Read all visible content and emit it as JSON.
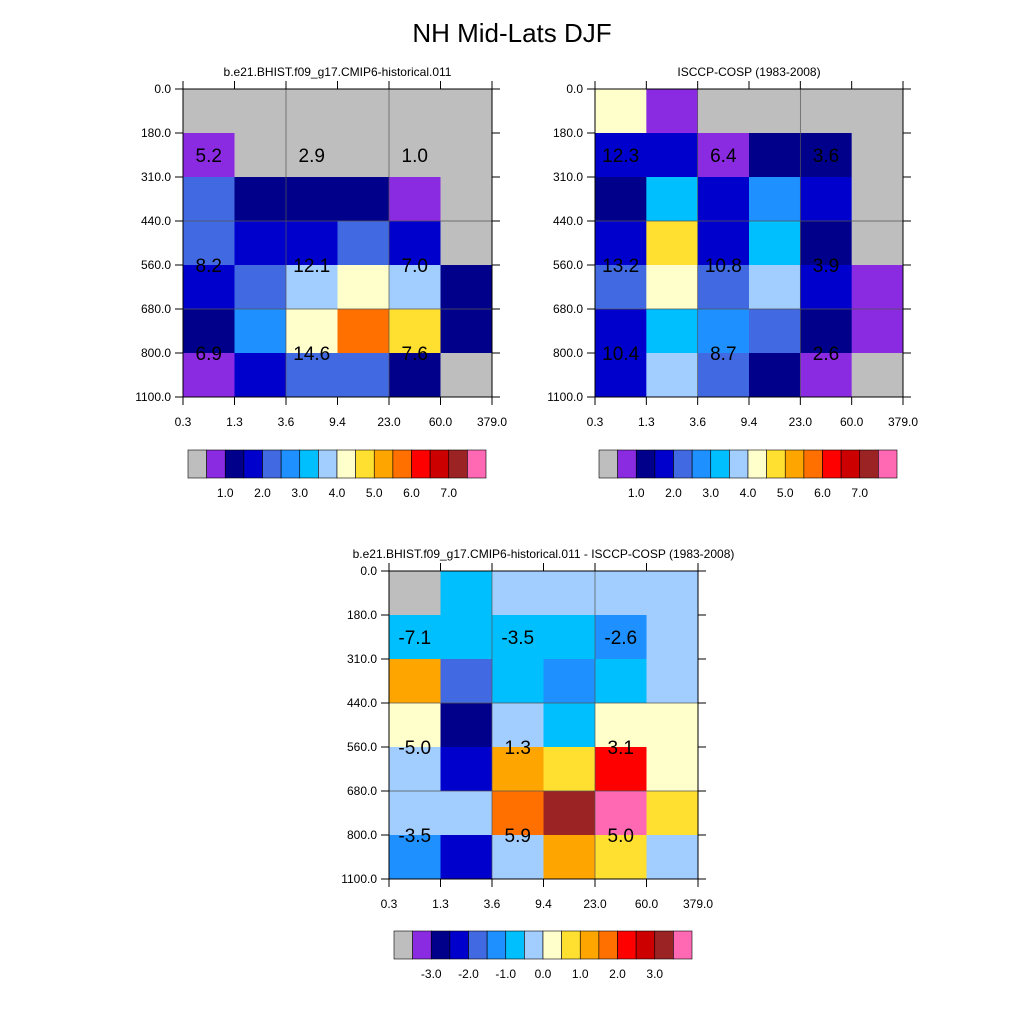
{
  "title": "NH Mid-Lats DJF",
  "colors": {
    "axis": "#000000",
    "missing": "#bebebe",
    "grid": "#555555"
  },
  "chart_data": [
    {
      "type": "heatmap",
      "title": "b.e21.BHIST.f09_g17.CMIP6-historical.011",
      "x_tick_labels": [
        "0.3",
        "1.3",
        "3.6",
        "9.4",
        "23.0",
        "60.0",
        "379.0"
      ],
      "y_tick_labels": [
        "0.0",
        "180.0",
        "310.0",
        "440.0",
        "560.0",
        "680.0",
        "800.0",
        "1100.0"
      ],
      "grid": true,
      "cells": [
        [
          "missing",
          "missing",
          "missing",
          "missing",
          "missing",
          "missing"
        ],
        [
          "#8a2be2",
          "missing",
          "missing",
          "missing",
          "missing",
          "missing"
        ],
        [
          "#4169e1",
          "#00008b",
          "#00008b",
          "#00008b",
          "#8a2be2",
          "missing"
        ],
        [
          "#4169e1",
          "#0000cd",
          "#0000cd",
          "#4169e1",
          "#0000cd",
          "missing"
        ],
        [
          "#0000cd",
          "#4169e1",
          "#a2cdff",
          "#ffffcc",
          "#a2cdff",
          "#00008b"
        ],
        [
          "#00008b",
          "#1e90ff",
          "#ffffcc",
          "#ff7000",
          "#ffdf30",
          "#00008b"
        ],
        [
          "#8a2be2",
          "#0000cd",
          "#4169e1",
          "#4169e1",
          "#00008b",
          "missing"
        ]
      ],
      "annotations": [
        {
          "col": 0.5,
          "row": 1.5,
          "text": "5.2"
        },
        {
          "col": 2.5,
          "row": 1.5,
          "text": "2.9"
        },
        {
          "col": 4.5,
          "row": 1.5,
          "text": "1.0"
        },
        {
          "col": 0.5,
          "row": 4.0,
          "text": "8.2"
        },
        {
          "col": 2.5,
          "row": 4.0,
          "text": "12.1"
        },
        {
          "col": 4.5,
          "row": 4.0,
          "text": "7.0"
        },
        {
          "col": 0.5,
          "row": 6.0,
          "text": "6.9"
        },
        {
          "col": 2.5,
          "row": 6.0,
          "text": "14.6"
        },
        {
          "col": 4.5,
          "row": 6.0,
          "text": "7.6"
        }
      ],
      "colorbar": {
        "colors": [
          "#bebebe",
          "#8a2be2",
          "#00008b",
          "#0000cd",
          "#4169e1",
          "#1e90ff",
          "#00bfff",
          "#a2cdff",
          "#ffffcc",
          "#ffdf30",
          "#ffa500",
          "#ff7000",
          "#ff0000",
          "#cd0000",
          "#9c2323",
          "#ff69b4"
        ],
        "labels": [
          {
            "after_box": 2,
            "text": "1.0"
          },
          {
            "after_box": 4,
            "text": "2.0"
          },
          {
            "after_box": 6,
            "text": "3.0"
          },
          {
            "after_box": 8,
            "text": "4.0"
          },
          {
            "after_box": 10,
            "text": "5.0"
          },
          {
            "after_box": 12,
            "text": "6.0"
          },
          {
            "after_box": 14,
            "text": "7.0"
          }
        ]
      }
    },
    {
      "type": "heatmap",
      "title": "ISCCP-COSP (1983-2008)",
      "x_tick_labels": [
        "0.3",
        "1.3",
        "3.6",
        "9.4",
        "23.0",
        "60.0",
        "379.0"
      ],
      "y_tick_labels": [
        "0.0",
        "180.0",
        "310.0",
        "440.0",
        "560.0",
        "680.0",
        "800.0",
        "1100.0"
      ],
      "grid": true,
      "cells": [
        [
          "#ffffcc",
          "#8a2be2",
          "missing",
          "missing",
          "missing",
          "missing"
        ],
        [
          "#0000cd",
          "#0000cd",
          "#8a2be2",
          "#00008b",
          "#00008b",
          "missing"
        ],
        [
          "#00008b",
          "#00bfff",
          "#0000cd",
          "#1e90ff",
          "#0000cd",
          "missing"
        ],
        [
          "#0000cd",
          "#ffdf30",
          "#0000cd",
          "#00bfff",
          "#00008b",
          "missing"
        ],
        [
          "#4169e1",
          "#ffffcc",
          "#4169e1",
          "#a2cdff",
          "#0000cd",
          "#8a2be2"
        ],
        [
          "#0000cd",
          "#00bfff",
          "#1e90ff",
          "#4169e1",
          "#00008b",
          "#8a2be2"
        ],
        [
          "#0000cd",
          "#a2cdff",
          "#4169e1",
          "#00008b",
          "#8a2be2",
          "missing"
        ]
      ],
      "annotations": [
        {
          "col": 0.5,
          "row": 1.5,
          "text": "12.3"
        },
        {
          "col": 2.5,
          "row": 1.5,
          "text": "6.4"
        },
        {
          "col": 4.5,
          "row": 1.5,
          "text": "3.6"
        },
        {
          "col": 0.5,
          "row": 4.0,
          "text": "13.2"
        },
        {
          "col": 2.5,
          "row": 4.0,
          "text": "10.8"
        },
        {
          "col": 4.5,
          "row": 4.0,
          "text": "3.9"
        },
        {
          "col": 0.5,
          "row": 6.0,
          "text": "10.4"
        },
        {
          "col": 2.5,
          "row": 6.0,
          "text": "8.7"
        },
        {
          "col": 4.5,
          "row": 6.0,
          "text": "2.6"
        }
      ],
      "colorbar": {
        "colors": [
          "#bebebe",
          "#8a2be2",
          "#00008b",
          "#0000cd",
          "#4169e1",
          "#1e90ff",
          "#00bfff",
          "#a2cdff",
          "#ffffcc",
          "#ffdf30",
          "#ffa500",
          "#ff7000",
          "#ff0000",
          "#cd0000",
          "#9c2323",
          "#ff69b4"
        ],
        "labels": [
          {
            "after_box": 2,
            "text": "1.0"
          },
          {
            "after_box": 4,
            "text": "2.0"
          },
          {
            "after_box": 6,
            "text": "3.0"
          },
          {
            "after_box": 8,
            "text": "4.0"
          },
          {
            "after_box": 10,
            "text": "5.0"
          },
          {
            "after_box": 12,
            "text": "6.0"
          },
          {
            "after_box": 14,
            "text": "7.0"
          }
        ]
      }
    },
    {
      "type": "heatmap",
      "title": "b.e21.BHIST.f09_g17.CMIP6-historical.011 - ISCCP-COSP (1983-2008)",
      "x_tick_labels": [
        "0.3",
        "1.3",
        "3.6",
        "9.4",
        "23.0",
        "60.0",
        "379.0"
      ],
      "y_tick_labels": [
        "0.0",
        "180.0",
        "310.0",
        "440.0",
        "560.0",
        "680.0",
        "800.0",
        "1100.0"
      ],
      "grid": true,
      "cells": [
        [
          "missing",
          "#00bfff",
          "#a2cdff",
          "#a2cdff",
          "#a2cdff",
          "#a2cdff"
        ],
        [
          "#00bfff",
          "#00bfff",
          "#00bfff",
          "#00bfff",
          "#1e90ff",
          "#a2cdff"
        ],
        [
          "#ffa500",
          "#4169e1",
          "#00bfff",
          "#1e90ff",
          "#00bfff",
          "#a2cdff"
        ],
        [
          "#ffffcc",
          "#00008b",
          "#a2cdff",
          "#00bfff",
          "#ffffcc",
          "#ffffcc"
        ],
        [
          "#a2cdff",
          "#0000cd",
          "#ffa500",
          "#ffdf30",
          "#ff0000",
          "#ffffcc"
        ],
        [
          "#a2cdff",
          "#a2cdff",
          "#ff7000",
          "#9c2323",
          "#ff69b4",
          "#ffdf30"
        ],
        [
          "#1e90ff",
          "#0000cd",
          "#a2cdff",
          "#ffa500",
          "#ffdf30",
          "#a2cdff"
        ]
      ],
      "annotations": [
        {
          "col": 0.5,
          "row": 1.5,
          "text": "-7.1"
        },
        {
          "col": 2.5,
          "row": 1.5,
          "text": "-3.5"
        },
        {
          "col": 4.5,
          "row": 1.5,
          "text": "-2.6"
        },
        {
          "col": 0.5,
          "row": 4.0,
          "text": "-5.0"
        },
        {
          "col": 2.5,
          "row": 4.0,
          "text": "1.3"
        },
        {
          "col": 4.5,
          "row": 4.0,
          "text": "3.1"
        },
        {
          "col": 0.5,
          "row": 6.0,
          "text": "-3.5"
        },
        {
          "col": 2.5,
          "row": 6.0,
          "text": "5.9"
        },
        {
          "col": 4.5,
          "row": 6.0,
          "text": "5.0"
        }
      ],
      "colorbar": {
        "colors": [
          "#bebebe",
          "#8a2be2",
          "#00008b",
          "#0000cd",
          "#4169e1",
          "#1e90ff",
          "#00bfff",
          "#a2cdff",
          "#ffffcc",
          "#ffdf30",
          "#ffa500",
          "#ff7000",
          "#ff0000",
          "#cd0000",
          "#9c2323",
          "#ff69b4"
        ],
        "labels": [
          {
            "after_box": 2,
            "text": "-3.0"
          },
          {
            "after_box": 4,
            "text": "-2.0"
          },
          {
            "after_box": 6,
            "text": "-1.0"
          },
          {
            "after_box": 8,
            "text": "0.0"
          },
          {
            "after_box": 10,
            "text": "1.0"
          },
          {
            "after_box": 12,
            "text": "2.0"
          },
          {
            "after_box": 14,
            "text": "3.0"
          }
        ]
      }
    }
  ]
}
